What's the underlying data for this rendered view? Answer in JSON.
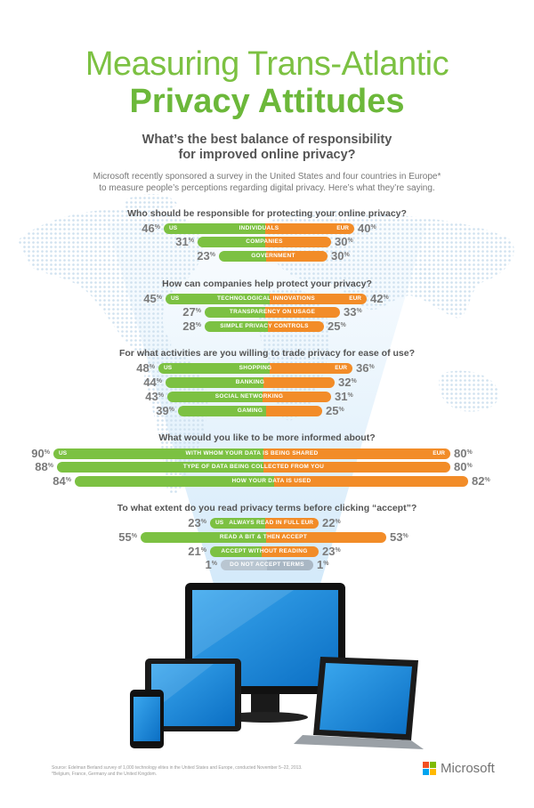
{
  "title": {
    "line1": "Measuring Trans-Atlantic",
    "line2": "Privacy Attitudes"
  },
  "subtitle": {
    "line1": "What’s the best balance of responsibility",
    "line2": "for improved online privacy?"
  },
  "intro": {
    "line1": "Microsoft recently sponsored a survey in the United States and four countries in Europe*",
    "line2": "to measure people’s perceptions regarding digital privacy. Here’s what they’re saying."
  },
  "colors": {
    "us": "#7cc142",
    "eur": "#f28c28",
    "neutral": "#b9c6d1",
    "title": "#7cc142",
    "text": "#555555"
  },
  "region_labels": {
    "us": "US",
    "eur": "EUR"
  },
  "sections": [
    {
      "question": "Who should be responsible for protecting your online privacy?",
      "rows": [
        {
          "label": "INDIVIDUALS",
          "us": 46,
          "eur": 40
        },
        {
          "label": "COMPANIES",
          "us": 31,
          "eur": 30
        },
        {
          "label": "GOVERNMENT",
          "us": 23,
          "eur": 30
        }
      ]
    },
    {
      "question": "How can companies help protect your privacy?",
      "rows": [
        {
          "label": "TECHNOLOGICAL INNOVATIONS",
          "us": 45,
          "eur": 42
        },
        {
          "label": "TRANSPARENCY ON USAGE",
          "us": 27,
          "eur": 33
        },
        {
          "label": "SIMPLE PRIVACY CONTROLS",
          "us": 28,
          "eur": 25
        }
      ]
    },
    {
      "question": "For what activities are you willing to trade privacy for ease of use?",
      "rows": [
        {
          "label": "SHOPPING",
          "us": 48,
          "eur": 36
        },
        {
          "label": "BANKING",
          "us": 44,
          "eur": 32
        },
        {
          "label": "SOCIAL NETWORKING",
          "us": 43,
          "eur": 31
        },
        {
          "label": "GAMING",
          "us": 39,
          "eur": 25
        }
      ]
    },
    {
      "question": "What would you like to be more informed about?",
      "rows": [
        {
          "label": "WITH WHOM YOUR DATA IS BEING SHARED",
          "us": 90,
          "eur": 80
        },
        {
          "label": "TYPE OF DATA BEING COLLECTED FROM YOU",
          "us": 88,
          "eur": 80
        },
        {
          "label": "HOW YOUR DATA IS USED",
          "us": 84,
          "eur": 82
        }
      ]
    },
    {
      "question": "To what extent do you read privacy terms before clicking “accept”?",
      "rows": [
        {
          "label": "ALWAYS READ IN FULL",
          "us": 23,
          "eur": 22
        },
        {
          "label": "READ A BIT & THEN ACCEPT",
          "us": 55,
          "eur": 53
        },
        {
          "label": "ACCEPT WITHOUT READING",
          "us": 21,
          "eur": 23
        },
        {
          "label": "DO NOT ACCEPT TERMS",
          "us": 1,
          "eur": 1
        }
      ]
    }
  ],
  "source": {
    "line1": "Source: Edelman Berland survey of 1,000 technology elites in the United States and Europe, conducted November 5–22, 2013.",
    "line2": "*Belgium, France, Germany and the United Kingdom."
  },
  "brand": {
    "name": "Microsoft",
    "logo_colors": [
      "#f25022",
      "#7fba00",
      "#00a4ef",
      "#ffb900"
    ]
  }
}
